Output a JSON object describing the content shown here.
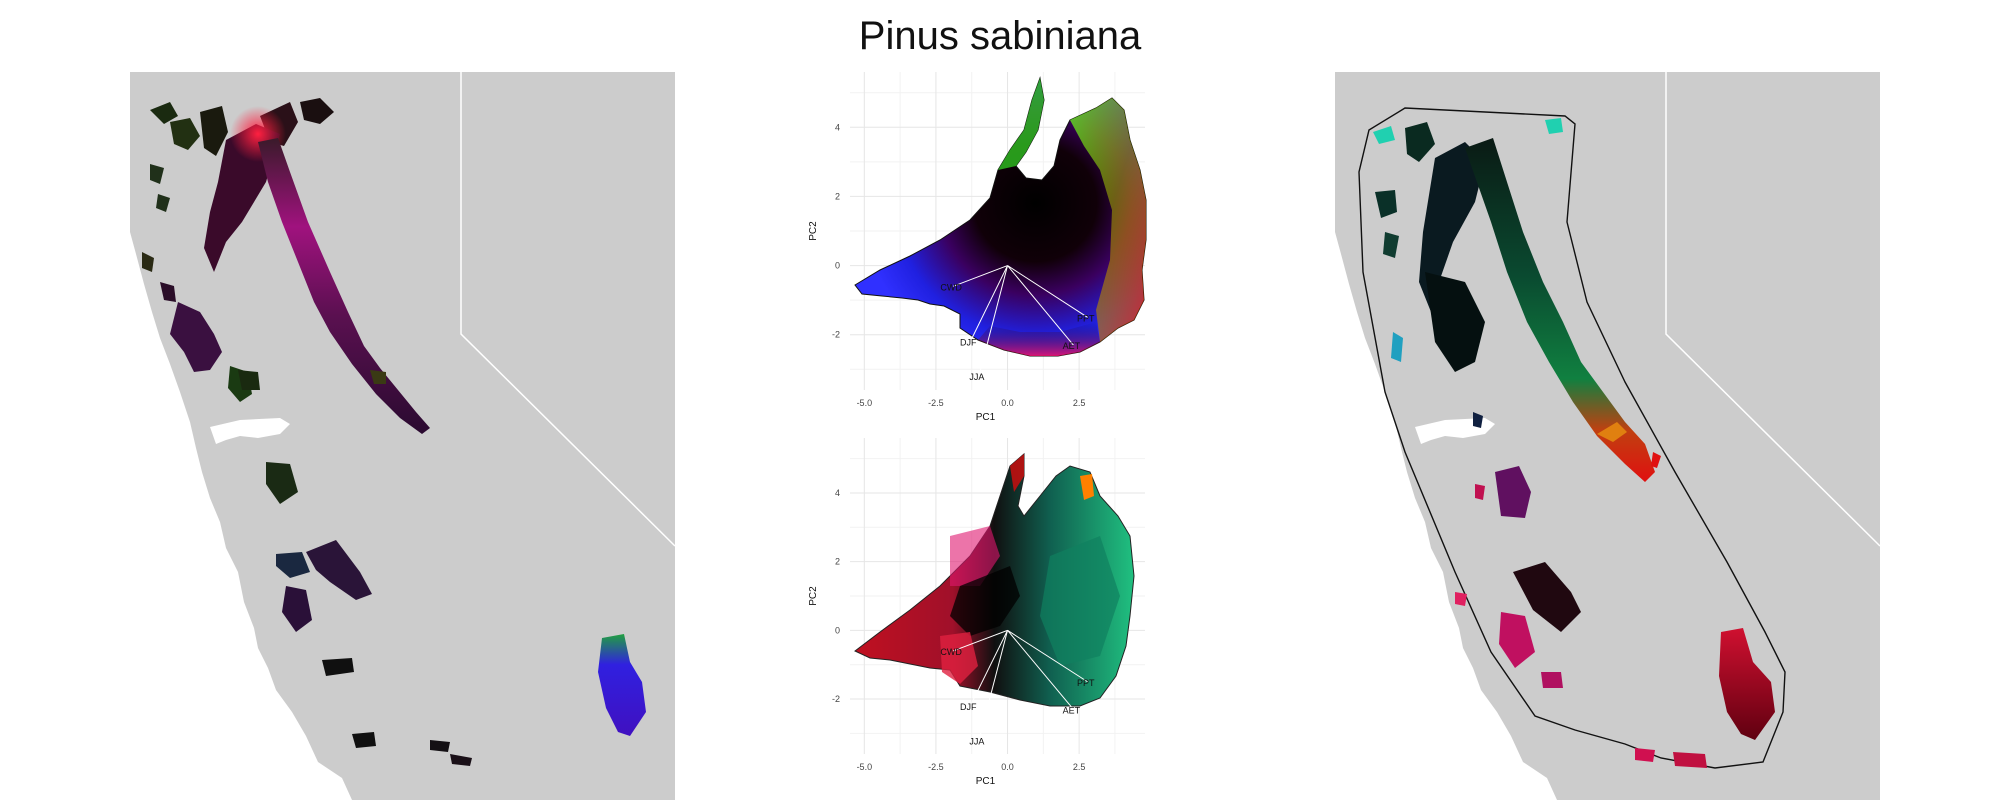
{
  "figure": {
    "title": "Pinus sabiniana"
  },
  "colors": {
    "background": "#ffffff",
    "land": "#cccccc",
    "state_border": "#ffffff",
    "water": "#ffffff"
  },
  "pca_plots": {
    "x_label": "PC1",
    "y_label": "PC2",
    "x_ticks": [
      "-5.0",
      "-2.5",
      "0.0",
      "2.5"
    ],
    "y_ticks": [
      "4",
      "2",
      "0",
      "-2"
    ],
    "vectors": [
      "CWD",
      "DJF",
      "JJA",
      "AET",
      "PPT"
    ]
  },
  "chart_data": [
    {
      "type": "scatter",
      "xlabel": "PC1",
      "ylabel": "PC2",
      "xlim": [
        -5.5,
        4.8
      ],
      "ylim": [
        -3.6,
        5.6
      ],
      "x_ticks": [
        -5.0,
        -2.5,
        0.0,
        2.5
      ],
      "y_ticks": [
        -2,
        0,
        2,
        4
      ],
      "grid": true,
      "legend": "none",
      "vectors": [
        {
          "label": "CWD",
          "x": -1.9,
          "y": -0.6
        },
        {
          "label": "DJF",
          "x": -1.3,
          "y": -2.2
        },
        {
          "label": "JJA",
          "x": -1.0,
          "y": -3.2
        },
        {
          "label": "AET",
          "x": 2.3,
          "y": -2.3
        },
        {
          "label": "PPT",
          "x": 2.8,
          "y": -1.5
        }
      ]
    },
    {
      "type": "scatter",
      "xlabel": "PC1",
      "ylabel": "PC2",
      "xlim": [
        -5.5,
        4.8
      ],
      "ylim": [
        -3.6,
        5.6
      ],
      "x_ticks": [
        -5.0,
        -2.5,
        0.0,
        2.5
      ],
      "y_ticks": [
        -2,
        0,
        2,
        4
      ],
      "grid": true,
      "legend": "none",
      "vectors": [
        {
          "label": "CWD",
          "x": -1.9,
          "y": -0.6
        },
        {
          "label": "DJF",
          "x": -1.3,
          "y": -2.2
        },
        {
          "label": "JJA",
          "x": -1.0,
          "y": -3.2
        },
        {
          "label": "AET",
          "x": 2.3,
          "y": -2.3
        },
        {
          "label": "PPT",
          "x": 2.8,
          "y": -1.5
        }
      ]
    }
  ]
}
